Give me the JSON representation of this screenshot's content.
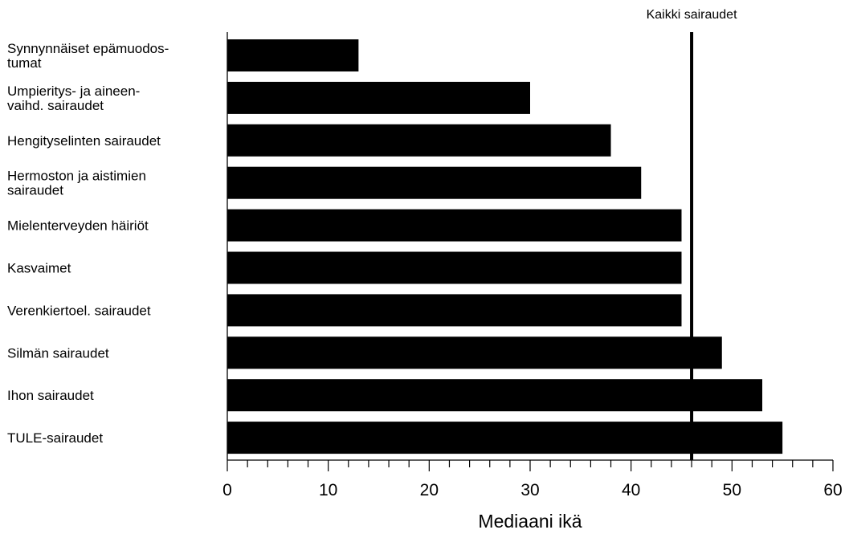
{
  "chart_data": {
    "type": "bar",
    "orientation": "horizontal",
    "categories": [
      [
        "Synnynnäiset epämuodos-",
        "tumat"
      ],
      [
        "Umpieritys- ja aineen-",
        "vaihd. sairaudet"
      ],
      [
        "Hengityselinten sairaudet"
      ],
      [
        "Hermoston ja aistimien",
        "sairaudet"
      ],
      [
        "Mielenterveyden häiriöt"
      ],
      [
        "Kasvaimet"
      ],
      [
        "Verenkiertoel. sairaudet"
      ],
      [
        "Silmän sairaudet"
      ],
      [
        "Ihon sairaudet"
      ],
      [
        "TULE-sairaudet"
      ]
    ],
    "values": [
      13,
      30,
      38,
      41,
      45,
      45,
      45,
      49,
      53,
      55
    ],
    "bar_color": "#000000",
    "xlabel": "Mediaani ikä",
    "xlim": [
      0,
      60
    ],
    "major_ticks": [
      0,
      10,
      20,
      30,
      40,
      50,
      60
    ],
    "minor_tick_step": 2,
    "reference_line": {
      "label": "Kaikki sairaudet",
      "value": 46
    },
    "grid": false,
    "legend": "none"
  }
}
